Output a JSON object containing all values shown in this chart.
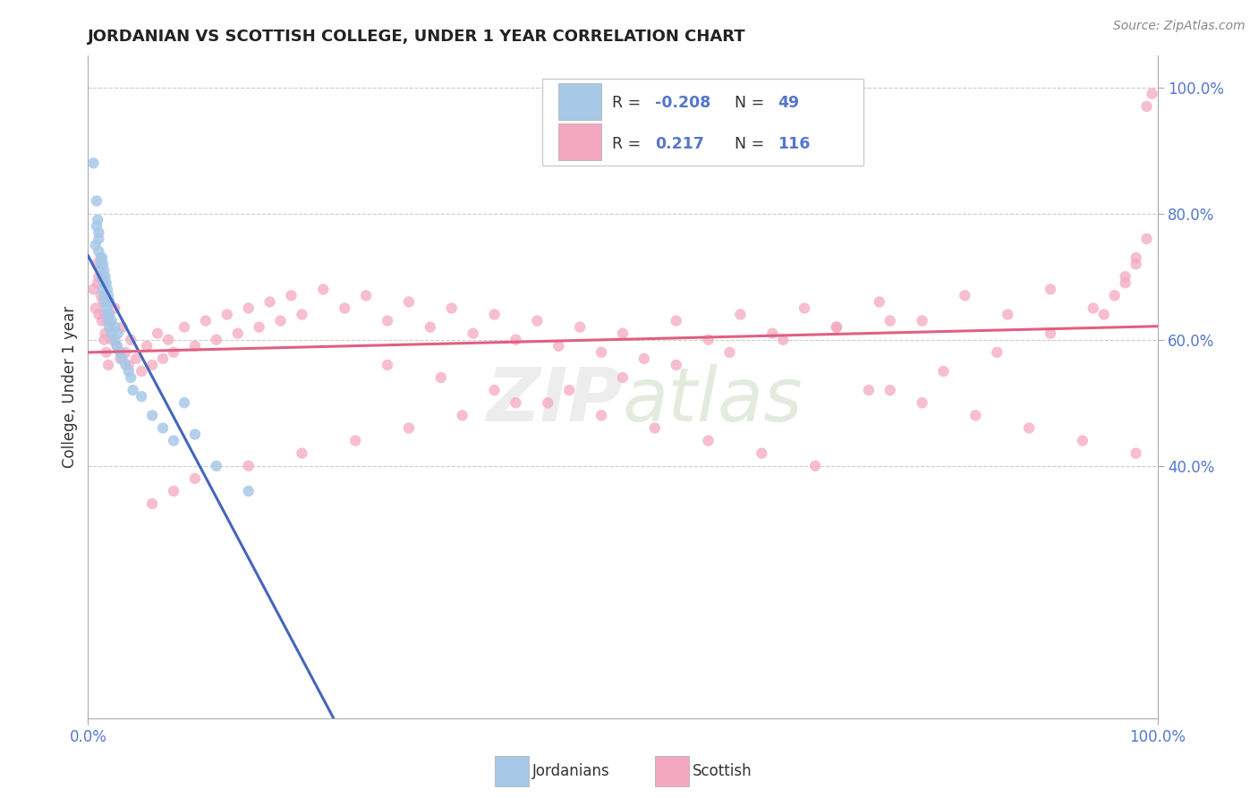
{
  "title": "JORDANIAN VS SCOTTISH COLLEGE, UNDER 1 YEAR CORRELATION CHART",
  "source": "Source: ZipAtlas.com",
  "ylabel": "College, Under 1 year",
  "xlim": [
    0.0,
    1.0
  ],
  "ylim": [
    0.0,
    1.05
  ],
  "x_tick_positions": [
    0.0,
    1.0
  ],
  "x_tick_labels": [
    "0.0%",
    "100.0%"
  ],
  "y_tick_positions": [
    0.4,
    0.6,
    0.8,
    1.0
  ],
  "y_tick_labels": [
    "40.0%",
    "60.0%",
    "80.0%",
    "100.0%"
  ],
  "jordanian_color": "#a8c8e8",
  "scottish_color": "#f4a8c0",
  "jordanian_line_color": "#4466bb",
  "scottish_line_color": "#e06080",
  "dash_line_color": "#aabbdd",
  "R_jordanian": -0.208,
  "N_jordanian": 49,
  "R_scottish": 0.217,
  "N_scottish": 116,
  "background_color": "#ffffff",
  "grid_color": "#cccccc",
  "watermark_color": "#dddddd",
  "text_color": "#333333",
  "tick_color": "#5577cc",
  "legend_label_jordanian": "Jordanians",
  "legend_label_scottish": "Scottish",
  "jx": [
    0.005,
    0.007,
    0.008,
    0.008,
    0.009,
    0.01,
    0.01,
    0.01,
    0.012,
    0.012,
    0.012,
    0.013,
    0.013,
    0.014,
    0.014,
    0.015,
    0.015,
    0.015,
    0.016,
    0.016,
    0.017,
    0.017,
    0.018,
    0.018,
    0.019,
    0.019,
    0.02,
    0.02,
    0.02,
    0.022,
    0.022,
    0.025,
    0.025,
    0.027,
    0.028,
    0.03,
    0.032,
    0.035,
    0.038,
    0.04,
    0.042,
    0.05,
    0.06,
    0.07,
    0.08,
    0.09,
    0.1,
    0.12,
    0.15
  ],
  "jy": [
    0.88,
    0.75,
    0.82,
    0.78,
    0.79,
    0.77,
    0.74,
    0.76,
    0.73,
    0.72,
    0.71,
    0.7,
    0.73,
    0.68,
    0.72,
    0.69,
    0.67,
    0.71,
    0.66,
    0.7,
    0.65,
    0.69,
    0.64,
    0.68,
    0.63,
    0.67,
    0.62,
    0.64,
    0.66,
    0.61,
    0.63,
    0.6,
    0.62,
    0.59,
    0.61,
    0.58,
    0.57,
    0.56,
    0.55,
    0.54,
    0.52,
    0.51,
    0.48,
    0.46,
    0.44,
    0.5,
    0.45,
    0.4,
    0.36
  ],
  "sx": [
    0.005,
    0.007,
    0.008,
    0.009,
    0.01,
    0.01,
    0.012,
    0.013,
    0.014,
    0.015,
    0.015,
    0.016,
    0.017,
    0.018,
    0.019,
    0.02,
    0.022,
    0.025,
    0.027,
    0.03,
    0.032,
    0.035,
    0.038,
    0.04,
    0.045,
    0.05,
    0.055,
    0.06,
    0.065,
    0.07,
    0.075,
    0.08,
    0.09,
    0.1,
    0.11,
    0.12,
    0.13,
    0.14,
    0.15,
    0.16,
    0.17,
    0.18,
    0.19,
    0.2,
    0.22,
    0.24,
    0.26,
    0.28,
    0.3,
    0.32,
    0.34,
    0.36,
    0.38,
    0.4,
    0.42,
    0.44,
    0.46,
    0.48,
    0.5,
    0.52,
    0.55,
    0.58,
    0.61,
    0.64,
    0.67,
    0.7,
    0.74,
    0.78,
    0.82,
    0.86,
    0.9,
    0.94,
    0.97,
    0.98,
    0.99,
    0.995,
    0.99,
    0.98,
    0.97,
    0.96,
    0.95,
    0.9,
    0.85,
    0.8,
    0.75,
    0.7,
    0.65,
    0.6,
    0.55,
    0.5,
    0.45,
    0.4,
    0.35,
    0.3,
    0.25,
    0.2,
    0.15,
    0.1,
    0.08,
    0.06,
    0.28,
    0.33,
    0.38,
    0.43,
    0.48,
    0.53,
    0.58,
    0.63,
    0.68,
    0.73,
    0.78,
    0.83,
    0.88,
    0.93,
    0.98,
    0.75,
    0.8
  ],
  "sy": [
    0.68,
    0.65,
    0.72,
    0.69,
    0.64,
    0.7,
    0.67,
    0.63,
    0.66,
    0.6,
    0.64,
    0.61,
    0.58,
    0.63,
    0.56,
    0.62,
    0.6,
    0.65,
    0.59,
    0.57,
    0.62,
    0.58,
    0.56,
    0.6,
    0.57,
    0.55,
    0.59,
    0.56,
    0.61,
    0.57,
    0.6,
    0.58,
    0.62,
    0.59,
    0.63,
    0.6,
    0.64,
    0.61,
    0.65,
    0.62,
    0.66,
    0.63,
    0.67,
    0.64,
    0.68,
    0.65,
    0.67,
    0.63,
    0.66,
    0.62,
    0.65,
    0.61,
    0.64,
    0.6,
    0.63,
    0.59,
    0.62,
    0.58,
    0.61,
    0.57,
    0.63,
    0.6,
    0.64,
    0.61,
    0.65,
    0.62,
    0.66,
    0.63,
    0.67,
    0.64,
    0.68,
    0.65,
    0.69,
    0.72,
    0.97,
    0.99,
    0.76,
    0.73,
    0.7,
    0.67,
    0.64,
    0.61,
    0.58,
    0.55,
    0.52,
    0.62,
    0.6,
    0.58,
    0.56,
    0.54,
    0.52,
    0.5,
    0.48,
    0.46,
    0.44,
    0.42,
    0.4,
    0.38,
    0.36,
    0.34,
    0.56,
    0.54,
    0.52,
    0.5,
    0.48,
    0.46,
    0.44,
    0.42,
    0.4,
    0.52,
    0.5,
    0.48,
    0.46,
    0.44,
    0.42,
    0.63,
    0.72
  ]
}
